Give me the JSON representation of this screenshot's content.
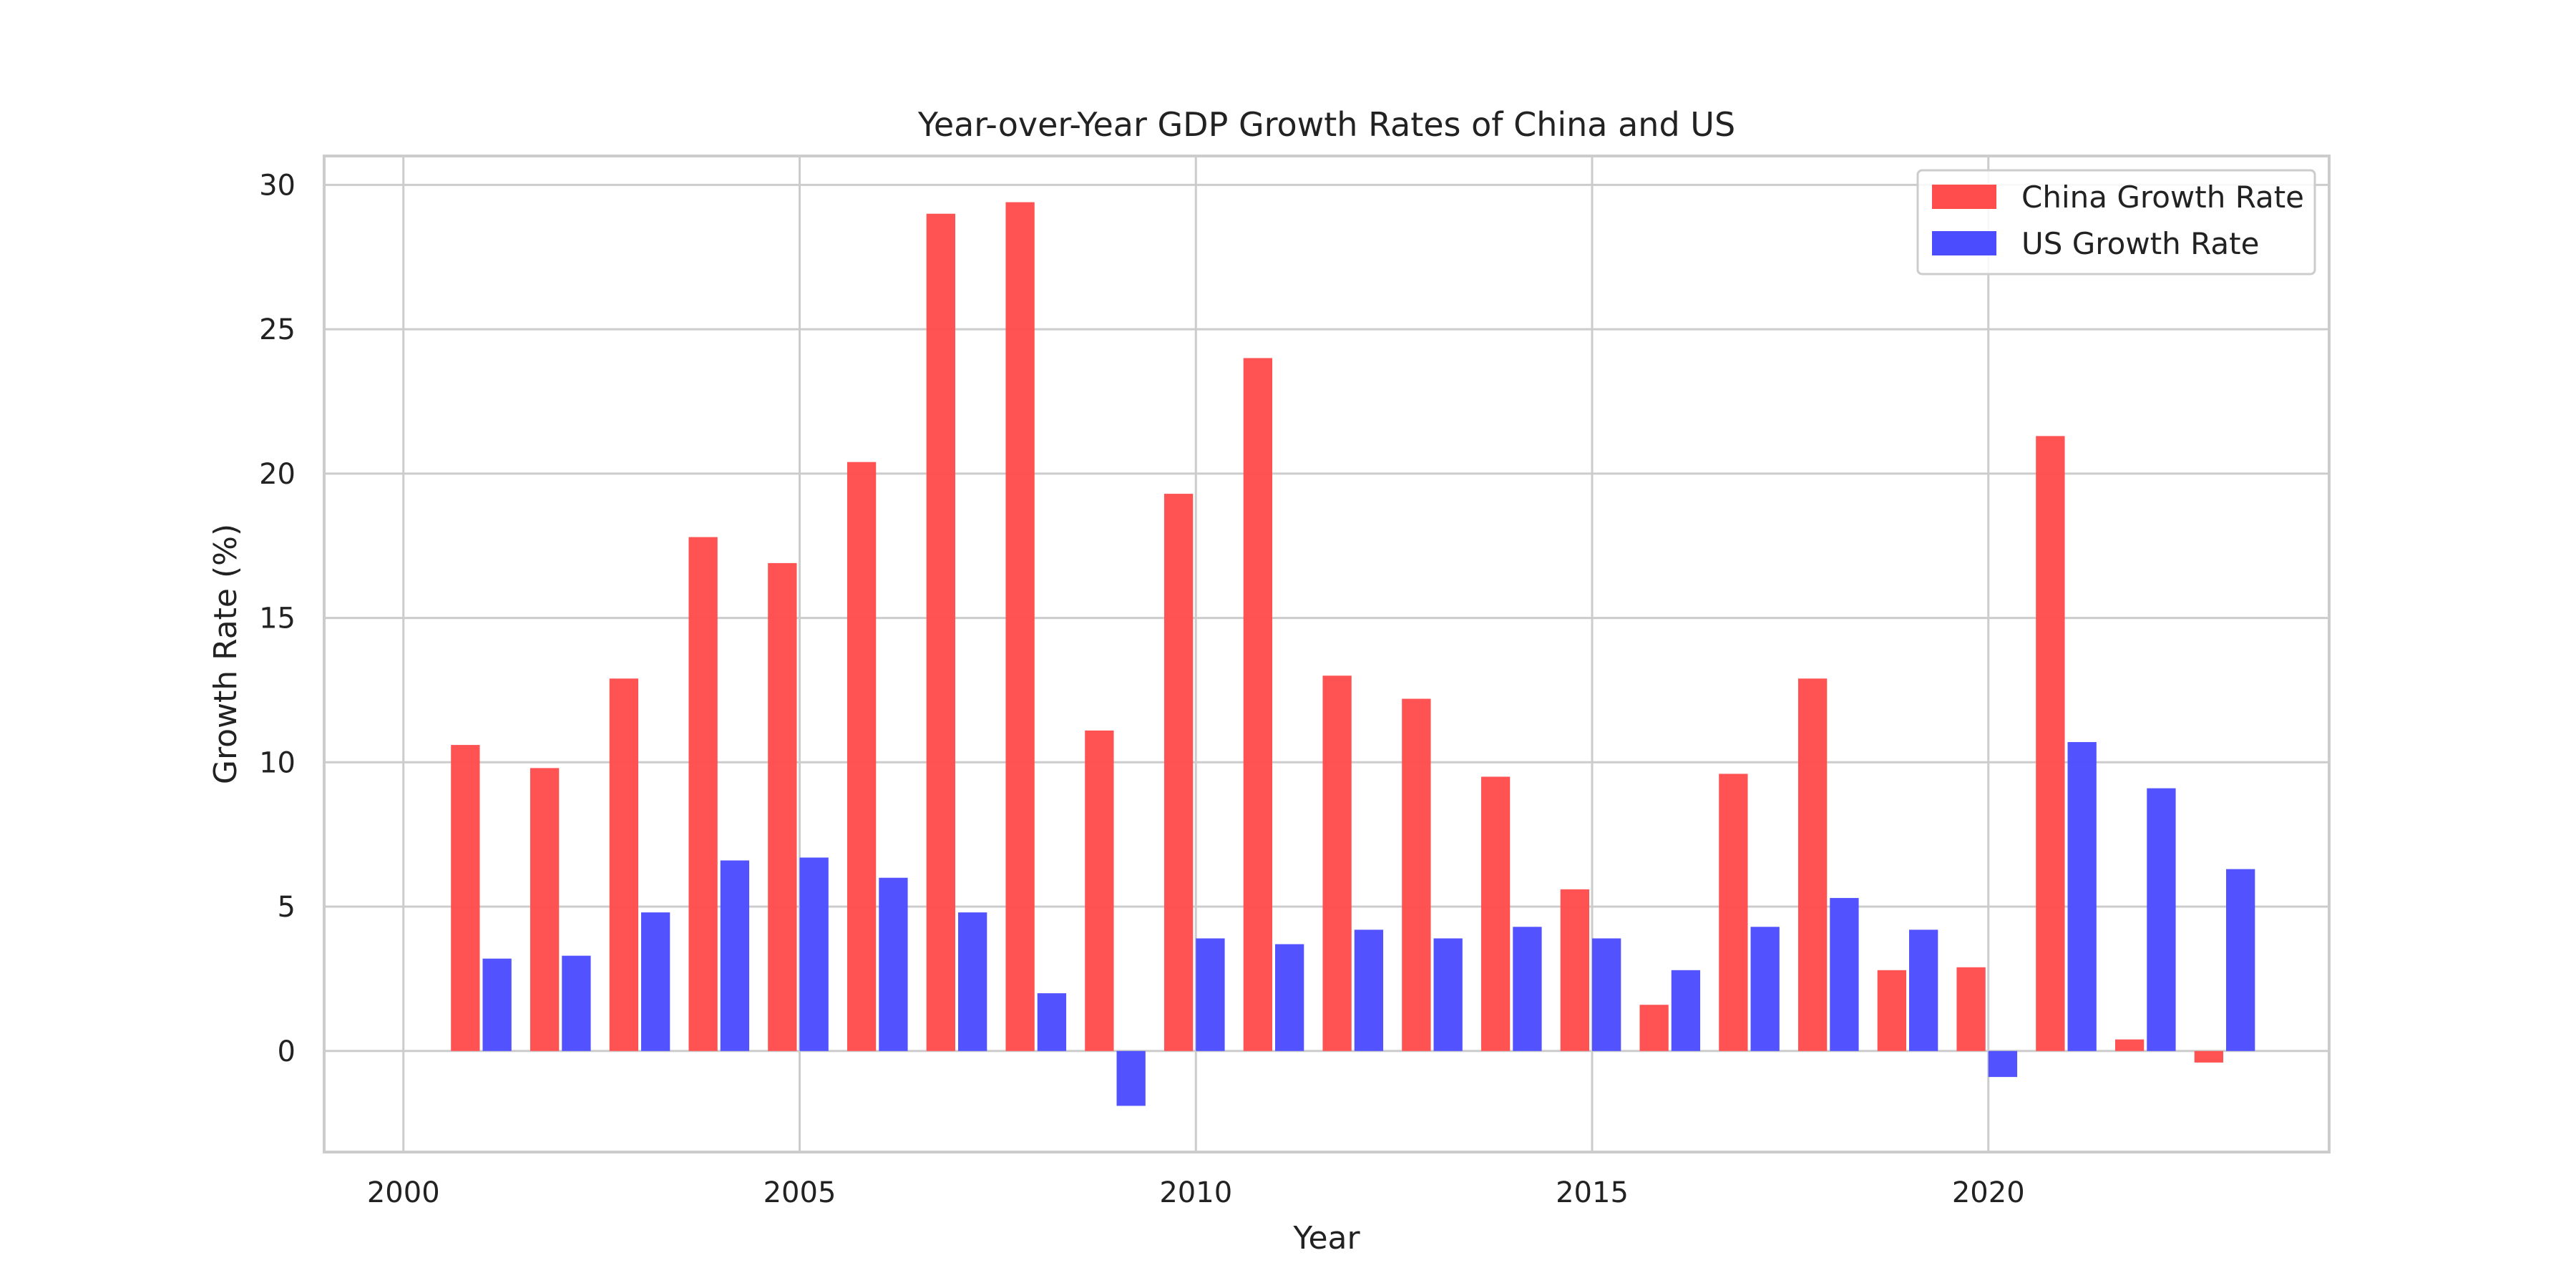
{
  "chart_data": {
    "type": "bar",
    "title": "Year-over-Year GDP Growth Rates of China and US",
    "xlabel": "Year",
    "ylabel": "Growth Rate (%)",
    "xlim": [
      1999,
      2024.3
    ],
    "ylim": [
      -3.5,
      31
    ],
    "x_ticks": [
      2000,
      2005,
      2010,
      2015,
      2020
    ],
    "y_ticks": [
      0,
      5,
      10,
      15,
      20,
      25,
      30
    ],
    "grid": true,
    "legend_position": "top-right",
    "categories": [
      2001,
      2002,
      2003,
      2004,
      2005,
      2006,
      2007,
      2008,
      2009,
      2010,
      2011,
      2012,
      2013,
      2014,
      2015,
      2016,
      2017,
      2018,
      2019,
      2020,
      2021,
      2022,
      2023
    ],
    "series": [
      {
        "name": "China Growth Rate",
        "color": "#ff4c4c",
        "values": [
          10.6,
          9.8,
          12.9,
          17.8,
          16.9,
          20.4,
          29.0,
          29.4,
          11.1,
          19.3,
          24.0,
          13.0,
          12.2,
          9.5,
          5.6,
          1.6,
          9.6,
          12.9,
          2.8,
          2.9,
          21.3,
          0.4,
          -0.4
        ]
      },
      {
        "name": "US Growth Rate",
        "color": "#4c4cff",
        "values": [
          3.2,
          3.3,
          4.8,
          6.6,
          6.7,
          6.0,
          4.8,
          2.0,
          -1.9,
          3.9,
          3.7,
          4.2,
          3.9,
          4.3,
          3.9,
          2.8,
          4.3,
          5.3,
          4.2,
          -0.9,
          10.7,
          9.1,
          6.3
        ]
      }
    ]
  }
}
